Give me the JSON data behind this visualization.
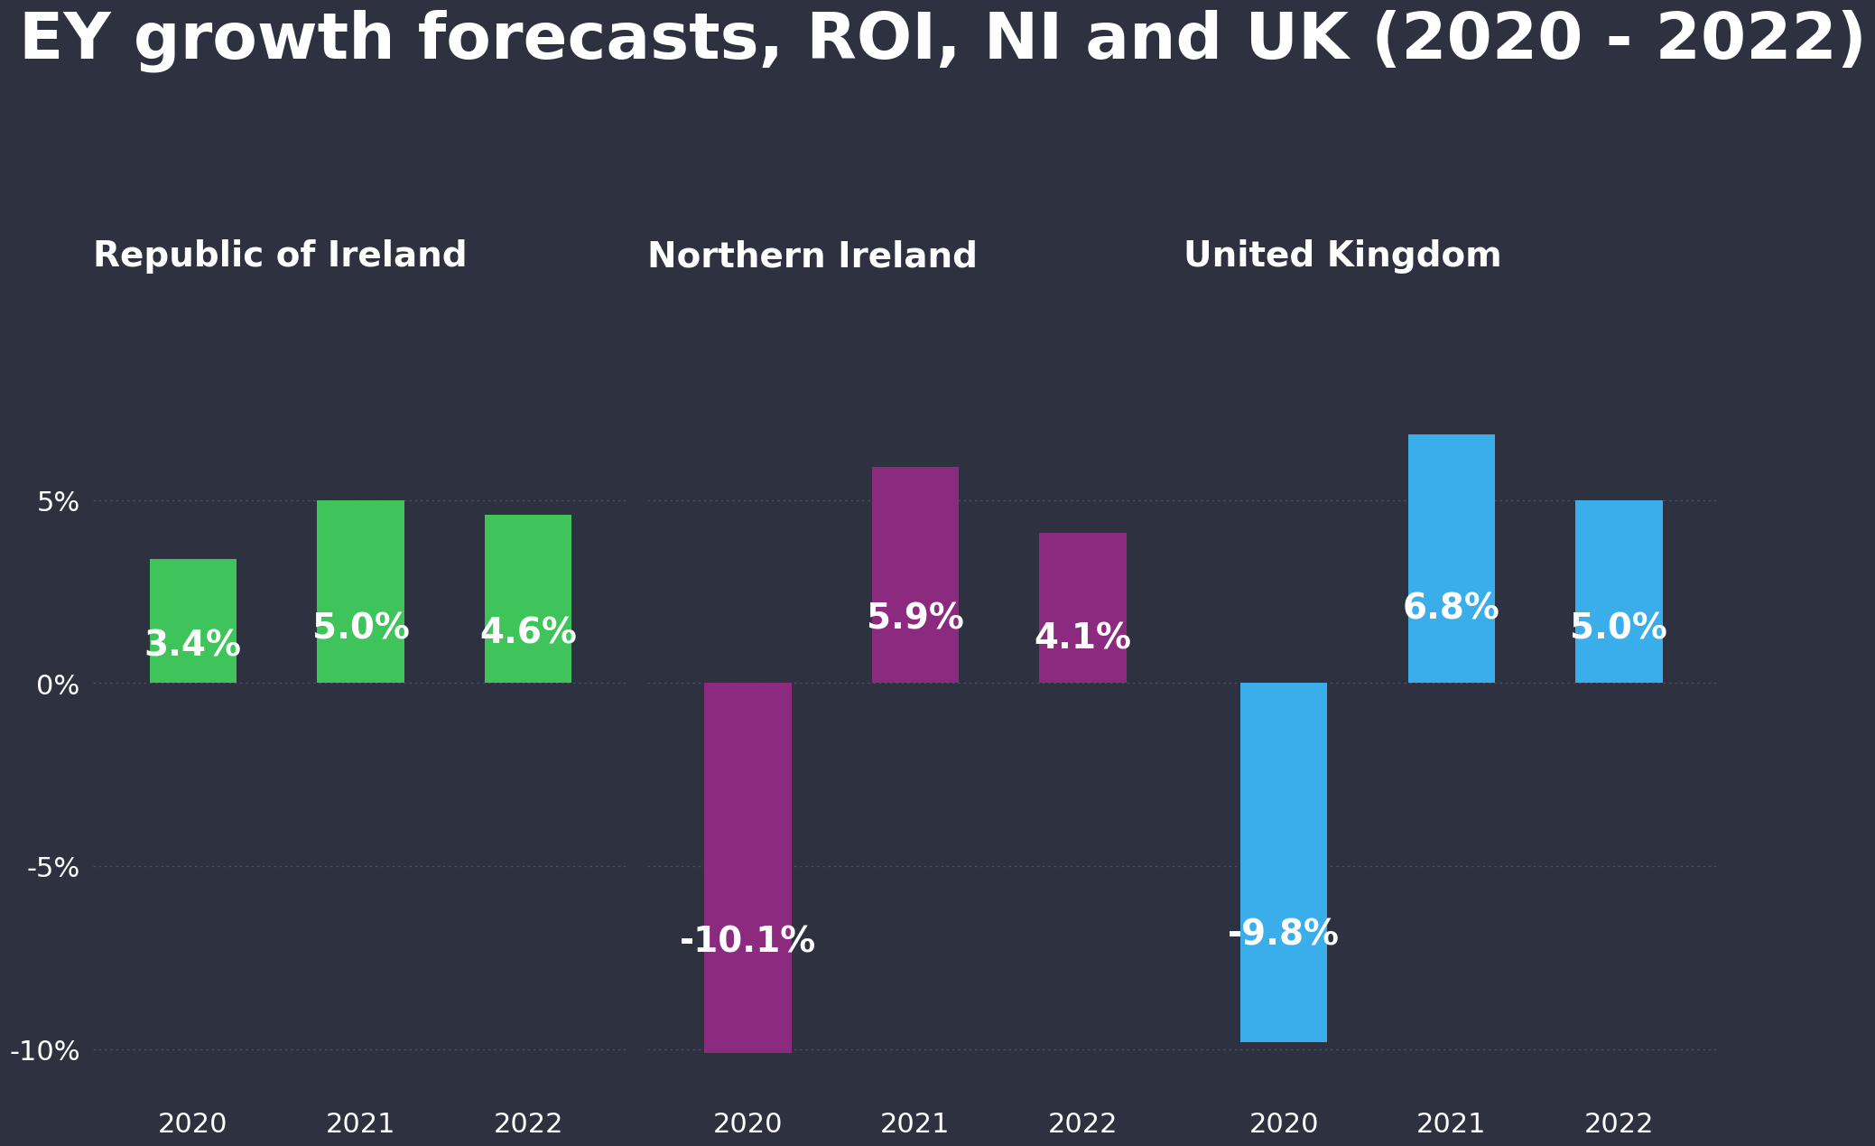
{
  "title": "EY growth forecasts, ROI, NI and UK (2020 - 2022)",
  "background_color": "#2e3240",
  "text_color": "#ffffff",
  "grid_color": "#4a5068",
  "title_fontsize": 52,
  "subtitle_fontsize": 28,
  "value_fontsize": 28,
  "tick_fontsize": 22,
  "year_fontsize": 22,
  "panels": [
    {
      "title": "Republic of Ireland",
      "color": "#3ec45a",
      "years": [
        "2020",
        "2021",
        "2022"
      ],
      "values": [
        3.4,
        5.0,
        4.6
      ],
      "labels": [
        "3.4%",
        "5.0%",
        "4.6%"
      ]
    },
    {
      "title": "Northern Ireland",
      "color": "#8b2a7e",
      "years": [
        "2020",
        "2021",
        "2022"
      ],
      "values": [
        -10.1,
        5.9,
        4.1
      ],
      "labels": [
        "-10.1%",
        "5.9%",
        "4.1%"
      ]
    },
    {
      "title": "United Kingdom",
      "color": "#3aadeb",
      "years": [
        "2020",
        "2021",
        "2022"
      ],
      "values": [
        -9.8,
        6.8,
        5.0
      ],
      "labels": [
        "-9.8%",
        "6.8%",
        "5.0%"
      ]
    }
  ],
  "ylim": [
    -11.2,
    9.0
  ],
  "yticks": [
    -10,
    -5,
    0,
    5
  ],
  "ytick_labels": [
    "-10%",
    "-5%",
    "0%",
    "5%"
  ]
}
